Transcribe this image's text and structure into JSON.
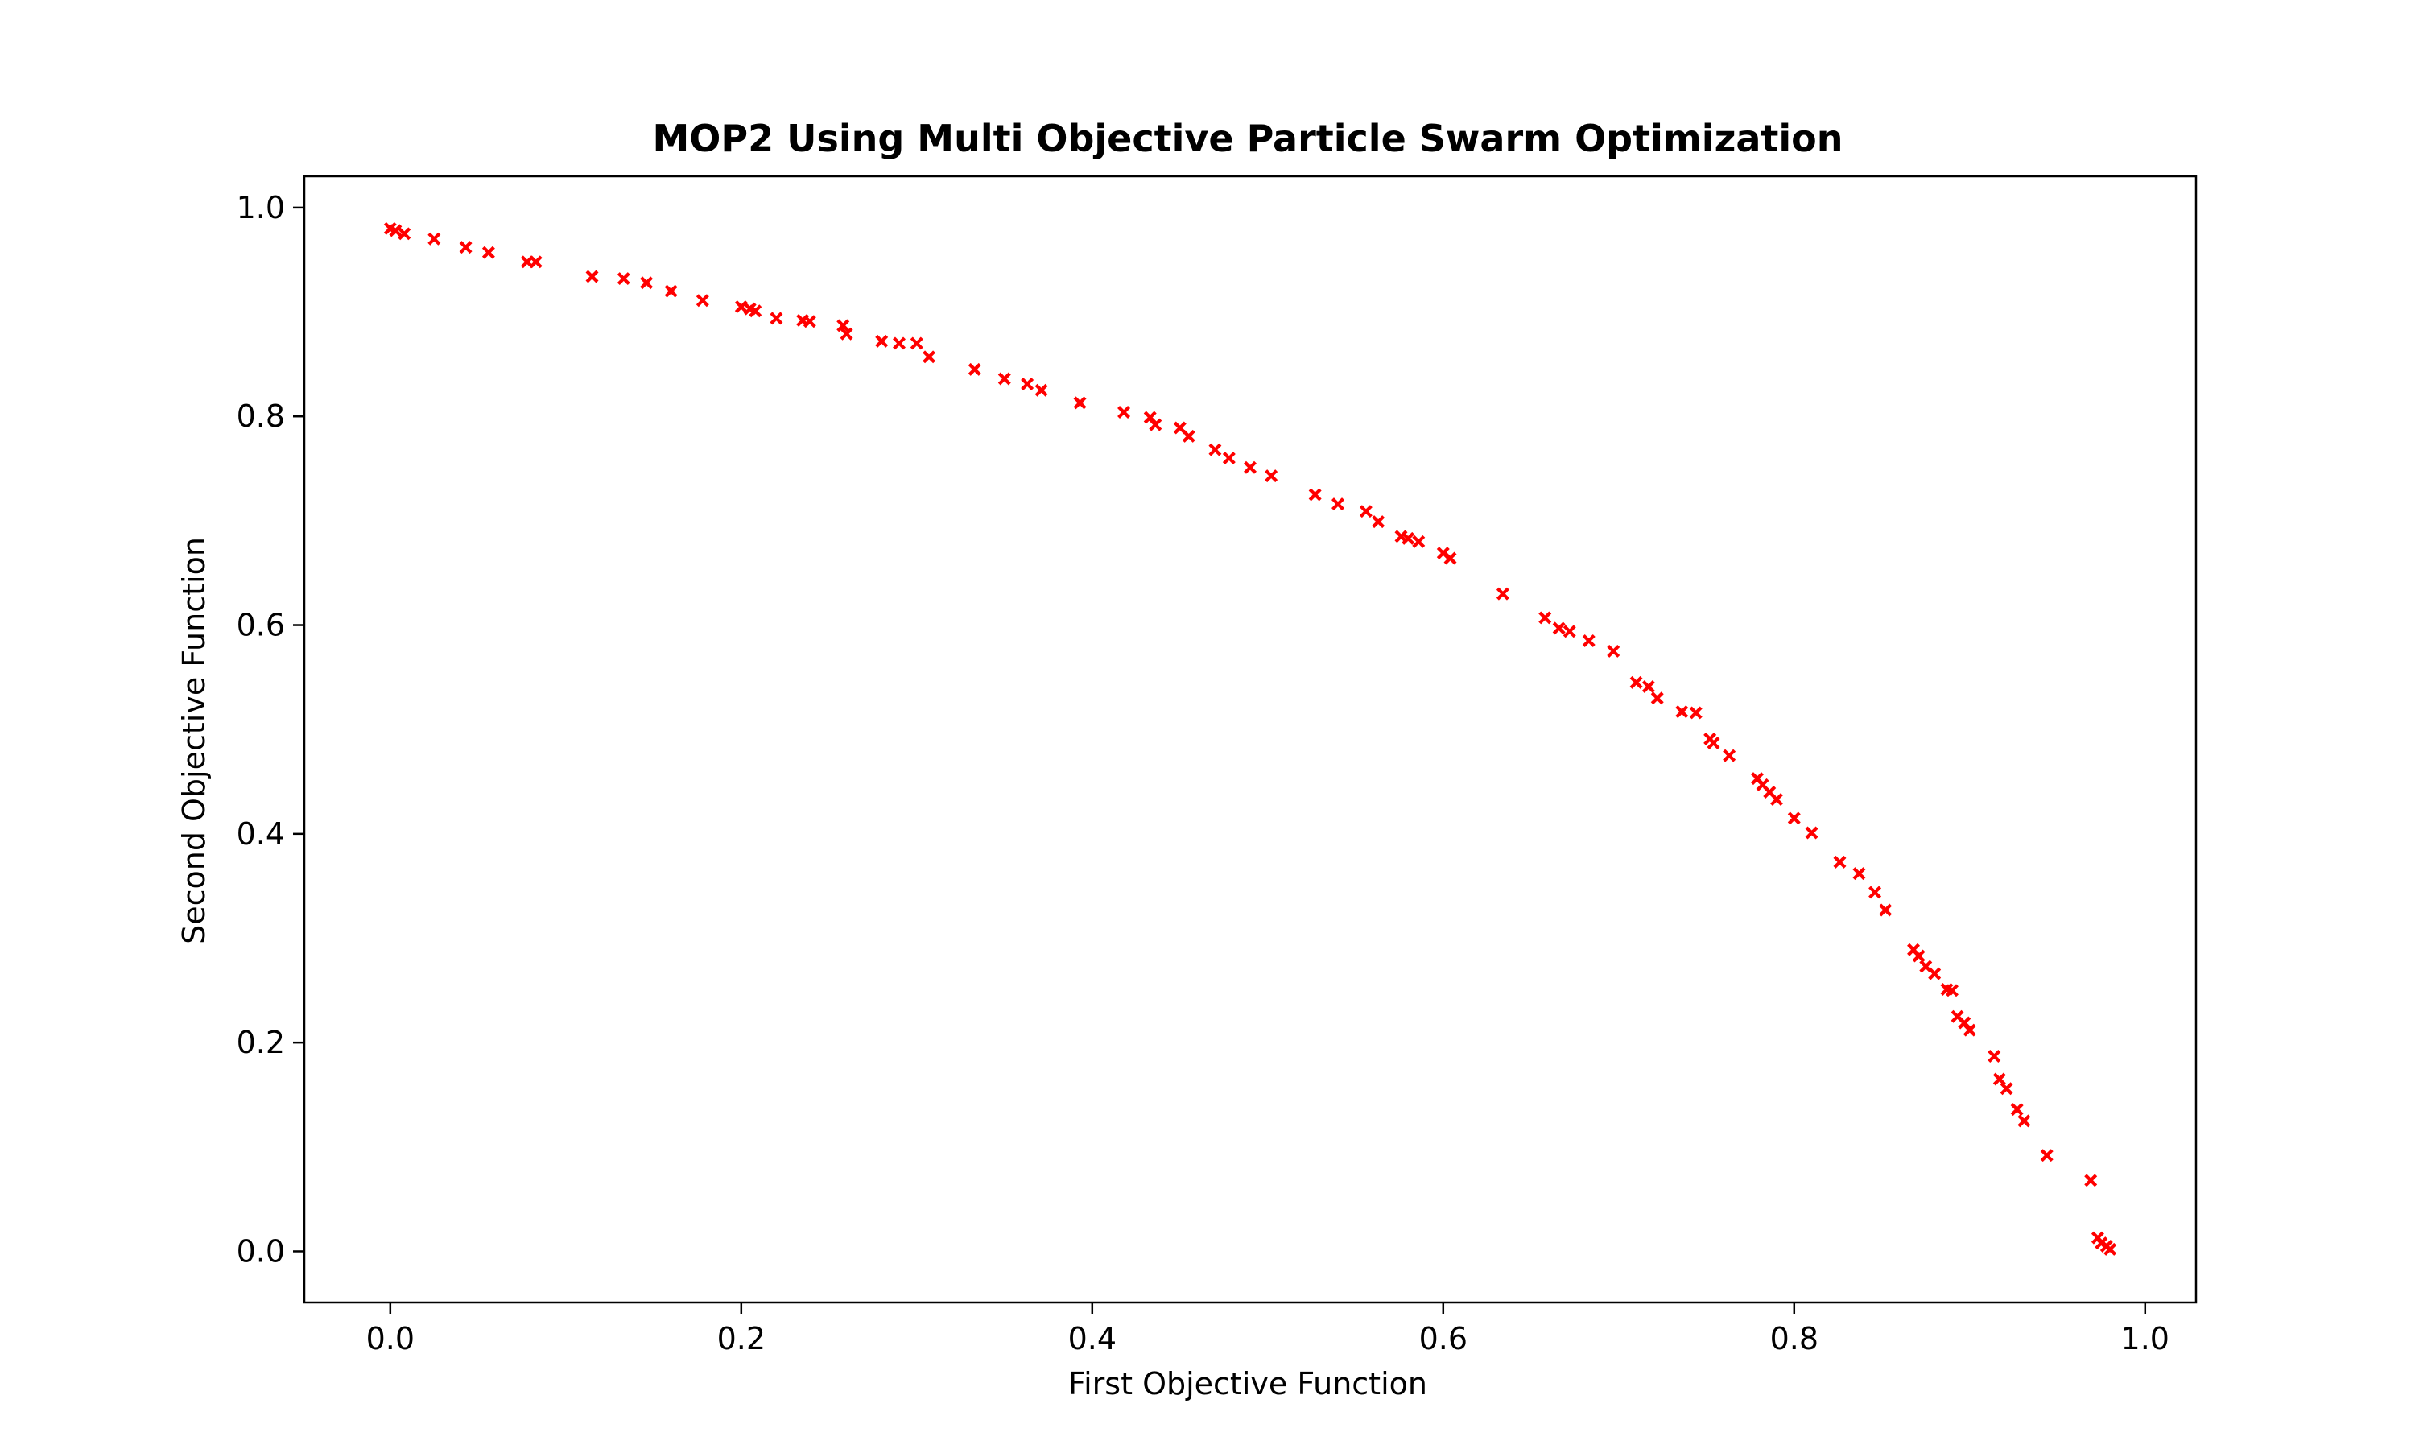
{
  "chart_data": {
    "type": "scatter",
    "title": "MOP2 Using Multi Objective Particle Swarm Optimization",
    "xlabel": "First Objective Function",
    "ylabel": "Second Objective Function",
    "xlim": [
      -0.049,
      1.029
    ],
    "ylim": [
      -0.049,
      1.03
    ],
    "grid": false,
    "legend": "none",
    "marker": "x",
    "color": "#ff0000",
    "xticks": [
      {
        "value": 0.0,
        "label": "0.0"
      },
      {
        "value": 0.2,
        "label": "0.2"
      },
      {
        "value": 0.4,
        "label": "0.4"
      },
      {
        "value": 0.6,
        "label": "0.6"
      },
      {
        "value": 0.8,
        "label": "0.8"
      },
      {
        "value": 1.0,
        "label": "1.0"
      }
    ],
    "yticks": [
      {
        "value": 0.0,
        "label": "0.0"
      },
      {
        "value": 0.2,
        "label": "0.2"
      },
      {
        "value": 0.4,
        "label": "0.4"
      },
      {
        "value": 0.6,
        "label": "0.6"
      },
      {
        "value": 0.8,
        "label": "0.8"
      },
      {
        "value": 1.0,
        "label": "1.0"
      }
    ],
    "series": [
      {
        "points": [
          [
            0.0,
            0.98
          ],
          [
            0.003,
            0.978
          ],
          [
            0.008,
            0.975
          ],
          [
            0.025,
            0.97
          ],
          [
            0.043,
            0.962
          ],
          [
            0.056,
            0.957
          ],
          [
            0.078,
            0.948
          ],
          [
            0.083,
            0.948
          ],
          [
            0.115,
            0.934
          ],
          [
            0.133,
            0.932
          ],
          [
            0.146,
            0.928
          ],
          [
            0.16,
            0.92
          ],
          [
            0.178,
            0.911
          ],
          [
            0.2,
            0.905
          ],
          [
            0.205,
            0.903
          ],
          [
            0.208,
            0.901
          ],
          [
            0.22,
            0.894
          ],
          [
            0.235,
            0.892
          ],
          [
            0.239,
            0.891
          ],
          [
            0.258,
            0.887
          ],
          [
            0.26,
            0.879
          ],
          [
            0.28,
            0.872
          ],
          [
            0.29,
            0.87
          ],
          [
            0.3,
            0.87
          ],
          [
            0.307,
            0.857
          ],
          [
            0.333,
            0.845
          ],
          [
            0.35,
            0.836
          ],
          [
            0.363,
            0.831
          ],
          [
            0.371,
            0.825
          ],
          [
            0.393,
            0.813
          ],
          [
            0.418,
            0.804
          ],
          [
            0.433,
            0.799
          ],
          [
            0.436,
            0.792
          ],
          [
            0.45,
            0.789
          ],
          [
            0.455,
            0.781
          ],
          [
            0.47,
            0.768
          ],
          [
            0.478,
            0.76
          ],
          [
            0.49,
            0.751
          ],
          [
            0.502,
            0.743
          ],
          [
            0.527,
            0.725
          ],
          [
            0.54,
            0.716
          ],
          [
            0.556,
            0.709
          ],
          [
            0.563,
            0.699
          ],
          [
            0.576,
            0.685
          ],
          [
            0.58,
            0.683
          ],
          [
            0.586,
            0.68
          ],
          [
            0.6,
            0.669
          ],
          [
            0.604,
            0.664
          ],
          [
            0.634,
            0.63
          ],
          [
            0.658,
            0.607
          ],
          [
            0.666,
            0.597
          ],
          [
            0.672,
            0.594
          ],
          [
            0.683,
            0.585
          ],
          [
            0.697,
            0.575
          ],
          [
            0.71,
            0.545
          ],
          [
            0.717,
            0.541
          ],
          [
            0.722,
            0.53
          ],
          [
            0.736,
            0.517
          ],
          [
            0.744,
            0.516
          ],
          [
            0.752,
            0.491
          ],
          [
            0.754,
            0.487
          ],
          [
            0.763,
            0.475
          ],
          [
            0.779,
            0.453
          ],
          [
            0.782,
            0.447
          ],
          [
            0.786,
            0.44
          ],
          [
            0.79,
            0.433
          ],
          [
            0.8,
            0.415
          ],
          [
            0.81,
            0.401
          ],
          [
            0.826,
            0.373
          ],
          [
            0.837,
            0.362
          ],
          [
            0.846,
            0.344
          ],
          [
            0.852,
            0.327
          ],
          [
            0.868,
            0.289
          ],
          [
            0.871,
            0.283
          ],
          [
            0.875,
            0.273
          ],
          [
            0.88,
            0.266
          ],
          [
            0.887,
            0.251
          ],
          [
            0.89,
            0.25
          ],
          [
            0.893,
            0.225
          ],
          [
            0.897,
            0.219
          ],
          [
            0.9,
            0.212
          ],
          [
            0.914,
            0.187
          ],
          [
            0.917,
            0.165
          ],
          [
            0.921,
            0.156
          ],
          [
            0.927,
            0.136
          ],
          [
            0.931,
            0.125
          ],
          [
            0.944,
            0.092
          ],
          [
            0.969,
            0.068
          ],
          [
            0.973,
            0.013
          ],
          [
            0.975,
            0.008
          ],
          [
            0.978,
            0.005
          ],
          [
            0.98,
            0.002
          ]
        ]
      }
    ]
  }
}
